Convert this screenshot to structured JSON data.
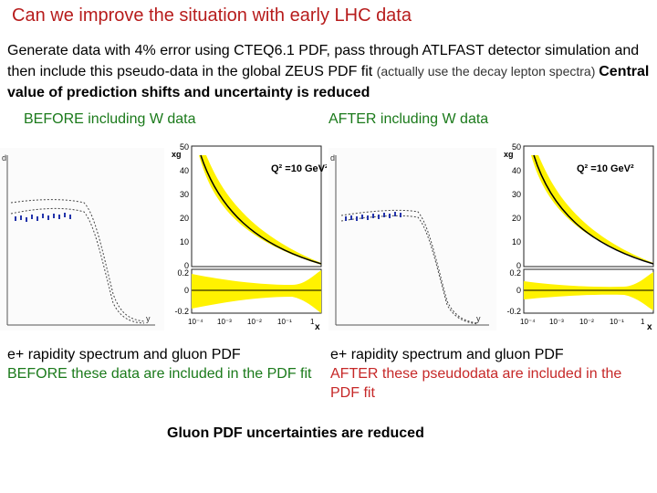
{
  "slide": {
    "title": "Can we improve the situation with early LHC data",
    "intro": {
      "part1": "Generate data with 4% error using CTEQ6.1 PDF,  pass through ATLFAST detector simulation  and then include this pseudo-data in the global ZEUS PDF fit ",
      "part2": "(actually use the decay lepton spectra) ",
      "part3": "Central value of prediction shifts and uncertainty is reduced"
    },
    "captions": {
      "before": "BEFORE including W data",
      "after": "AFTER including W data"
    },
    "left_text": {
      "line1": "e+  rapidity spectrum and gluon PDF",
      "line2": "BEFORE these data are included in the PDF fit"
    },
    "right_text": {
      "line1": "e+  rapidity spectrum and gluon PDF",
      "line2": "AFTER these pseudodata are included in the PDF fit"
    },
    "footer": "Gluon PDF uncertainties are reduced"
  },
  "plot_labels": {
    "y_axis_small": "d",
    "y_axis_xg": "xg",
    "q2": "Q² =10 GeV²",
    "x_axis": "x",
    "y_var": "y",
    "xg_ticks": [
      "50",
      "40",
      "30",
      "20",
      "10",
      "0"
    ],
    "ratio_ticks": [
      "0.2",
      "0",
      "-0.2"
    ],
    "x_ticks": [
      "10⁻⁴",
      "10⁻³",
      "10⁻²",
      "10⁻¹",
      "1"
    ]
  },
  "colors": {
    "title": "#b71c1c",
    "band": "#fff200",
    "green": "#1b7a1b",
    "red": "#c62828"
  }
}
